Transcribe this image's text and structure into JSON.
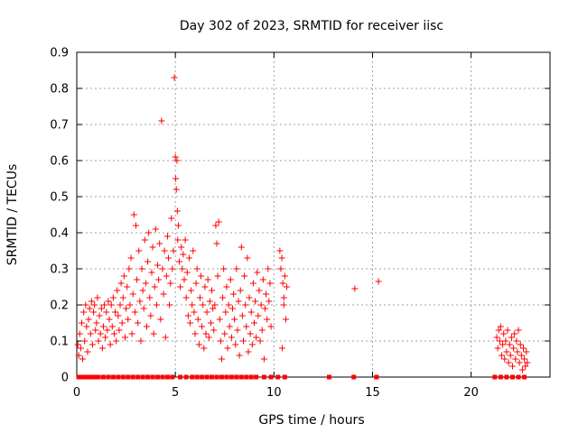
{
  "chart_data": {
    "type": "scatter",
    "title": "Day 302 of 2023, SRMTID for receiver iisc",
    "xlabel": "GPS time / hours",
    "ylabel": "SRMTID / TECUs",
    "xlim": [
      0,
      24
    ],
    "ylim": [
      0,
      0.9
    ],
    "xticks": [
      0,
      5,
      10,
      15,
      20
    ],
    "xtick_labels": [
      "0",
      "5",
      "10",
      "15",
      "20"
    ],
    "yticks": [
      0,
      0.1,
      0.2,
      0.3,
      0.4,
      0.5,
      0.6,
      0.7,
      0.8,
      0.9
    ],
    "ytick_labels": [
      "0",
      "0.1",
      "0.2",
      "0.3",
      "0.4",
      "0.5",
      "0.6",
      "0.7",
      "0.8",
      "0.9"
    ],
    "grid": true,
    "marker": "plus",
    "color": "#ff0000",
    "series": [
      {
        "name": "SRMTID",
        "points": [
          [
            0.05,
            0.09
          ],
          [
            0.1,
            0.06
          ],
          [
            0.15,
            0.12
          ],
          [
            0.2,
            0.08
          ],
          [
            0.25,
            0.15
          ],
          [
            0.3,
            0.05
          ],
          [
            0.35,
            0.18
          ],
          [
            0.4,
            0.1
          ],
          [
            0.45,
            0.2
          ],
          [
            0.5,
            0.14
          ],
          [
            0.55,
            0.07
          ],
          [
            0.6,
            0.16
          ],
          [
            0.65,
            0.19
          ],
          [
            0.7,
            0.12
          ],
          [
            0.75,
            0.21
          ],
          [
            0.8,
            0.09
          ],
          [
            0.85,
            0.18
          ],
          [
            0.9,
            0.2
          ],
          [
            0.95,
            0.13
          ],
          [
            1.0,
            0.15
          ],
          [
            1.05,
            0.22
          ],
          [
            1.1,
            0.1
          ],
          [
            1.15,
            0.17
          ],
          [
            1.2,
            0.12
          ],
          [
            1.25,
            0.19
          ],
          [
            1.3,
            0.08
          ],
          [
            1.35,
            0.14
          ],
          [
            1.4,
            0.2
          ],
          [
            1.45,
            0.11
          ],
          [
            1.5,
            0.18
          ],
          [
            1.55,
            0.13
          ],
          [
            1.6,
            0.21
          ],
          [
            1.65,
            0.16
          ],
          [
            1.7,
            0.09
          ],
          [
            1.75,
            0.2
          ],
          [
            1.8,
            0.14
          ],
          [
            1.85,
            0.22
          ],
          [
            1.9,
            0.12
          ],
          [
            1.95,
            0.18
          ],
          [
            2.0,
            0.1
          ],
          [
            2.05,
            0.24
          ],
          [
            2.1,
            0.17
          ],
          [
            2.15,
            0.13
          ],
          [
            2.2,
            0.2
          ],
          [
            2.25,
            0.26
          ],
          [
            2.3,
            0.15
          ],
          [
            2.35,
            0.22
          ],
          [
            2.4,
            0.28
          ],
          [
            2.45,
            0.11
          ],
          [
            2.5,
            0.19
          ],
          [
            2.55,
            0.25
          ],
          [
            2.6,
            0.16
          ],
          [
            2.65,
            0.3
          ],
          [
            2.7,
            0.2
          ],
          [
            2.75,
            0.33
          ],
          [
            2.8,
            0.12
          ],
          [
            2.85,
            0.23
          ],
          [
            2.9,
            0.45
          ],
          [
            2.95,
            0.18
          ],
          [
            3.0,
            0.42
          ],
          [
            3.05,
            0.27
          ],
          [
            3.1,
            0.15
          ],
          [
            3.15,
            0.35
          ],
          [
            3.2,
            0.21
          ],
          [
            3.25,
            0.1
          ],
          [
            3.3,
            0.3
          ],
          [
            3.35,
            0.24
          ],
          [
            3.4,
            0.19
          ],
          [
            3.45,
            0.38
          ],
          [
            3.5,
            0.26
          ],
          [
            3.55,
            0.14
          ],
          [
            3.6,
            0.32
          ],
          [
            3.65,
            0.4
          ],
          [
            3.7,
            0.22
          ],
          [
            3.75,
            0.17
          ],
          [
            3.8,
            0.29
          ],
          [
            3.85,
            0.36
          ],
          [
            3.9,
            0.12
          ],
          [
            3.95,
            0.25
          ],
          [
            4.0,
            0.41
          ],
          [
            4.05,
            0.2
          ],
          [
            4.1,
            0.31
          ],
          [
            4.15,
            0.27
          ],
          [
            4.2,
            0.37
          ],
          [
            4.25,
            0.16
          ],
          [
            4.3,
            0.71
          ],
          [
            4.35,
            0.3
          ],
          [
            4.4,
            0.23
          ],
          [
            4.45,
            0.35
          ],
          [
            4.5,
            0.11
          ],
          [
            4.55,
            0.28
          ],
          [
            4.6,
            0.39
          ],
          [
            4.65,
            0.33
          ],
          [
            4.7,
            0.2
          ],
          [
            4.75,
            0.26
          ],
          [
            4.8,
            0.44
          ],
          [
            4.85,
            0.3
          ],
          [
            4.9,
            0.35
          ],
          [
            4.95,
            0.83
          ],
          [
            5.0,
            0.61
          ],
          [
            5.02,
            0.55
          ],
          [
            5.05,
            0.52
          ],
          [
            5.08,
            0.6
          ],
          [
            5.1,
            0.46
          ],
          [
            5.12,
            0.38
          ],
          [
            5.15,
            0.42
          ],
          [
            5.2,
            0.32
          ],
          [
            5.25,
            0.25
          ],
          [
            5.3,
            0.36
          ],
          [
            5.35,
            0.3
          ],
          [
            5.4,
            0.34
          ],
          [
            5.45,
            0.27
          ],
          [
            5.5,
            0.38
          ],
          [
            5.55,
            0.22
          ],
          [
            5.6,
            0.29
          ],
          [
            5.65,
            0.17
          ],
          [
            5.7,
            0.33
          ],
          [
            5.75,
            0.15
          ],
          [
            5.8,
            0.24
          ],
          [
            5.85,
            0.2
          ],
          [
            5.9,
            0.35
          ],
          [
            5.95,
            0.18
          ],
          [
            6.0,
            0.12
          ],
          [
            6.05,
            0.26
          ],
          [
            6.1,
            0.3
          ],
          [
            6.15,
            0.16
          ],
          [
            6.2,
            0.09
          ],
          [
            6.25,
            0.22
          ],
          [
            6.3,
            0.28
          ],
          [
            6.35,
            0.14
          ],
          [
            6.4,
            0.2
          ],
          [
            6.45,
            0.08
          ],
          [
            6.5,
            0.25
          ],
          [
            6.55,
            0.12
          ],
          [
            6.6,
            0.18
          ],
          [
            6.65,
            0.27
          ],
          [
            6.7,
            0.11
          ],
          [
            6.75,
            0.21
          ],
          [
            6.8,
            0.15
          ],
          [
            6.85,
            0.24
          ],
          [
            6.9,
            0.19
          ],
          [
            6.95,
            0.13
          ],
          [
            7.0,
            0.2
          ],
          [
            7.05,
            0.42
          ],
          [
            7.1,
            0.37
          ],
          [
            7.15,
            0.28
          ],
          [
            7.2,
            0.43
          ],
          [
            7.25,
            0.16
          ],
          [
            7.3,
            0.1
          ],
          [
            7.35,
            0.05
          ],
          [
            7.4,
            0.22
          ],
          [
            7.45,
            0.3
          ],
          [
            7.5,
            0.12
          ],
          [
            7.55,
            0.18
          ],
          [
            7.6,
            0.25
          ],
          [
            7.65,
            0.08
          ],
          [
            7.7,
            0.2
          ],
          [
            7.75,
            0.14
          ],
          [
            7.8,
            0.27
          ],
          [
            7.85,
            0.11
          ],
          [
            7.9,
            0.19
          ],
          [
            7.95,
            0.23
          ],
          [
            8.0,
            0.16
          ],
          [
            8.05,
            0.09
          ],
          [
            8.1,
            0.3
          ],
          [
            8.15,
            0.13
          ],
          [
            8.2,
            0.21
          ],
          [
            8.25,
            0.06
          ],
          [
            8.3,
            0.24
          ],
          [
            8.35,
            0.36
          ],
          [
            8.4,
            0.17
          ],
          [
            8.45,
            0.1
          ],
          [
            8.5,
            0.28
          ],
          [
            8.55,
            0.2
          ],
          [
            8.6,
            0.14
          ],
          [
            8.65,
            0.33
          ],
          [
            8.7,
            0.07
          ],
          [
            8.75,
            0.22
          ],
          [
            8.8,
            0.12
          ],
          [
            8.85,
            0.18
          ],
          [
            8.9,
            0.09
          ],
          [
            8.95,
            0.26
          ],
          [
            9.0,
            0.15
          ],
          [
            9.05,
            0.21
          ],
          [
            9.1,
            0.11
          ],
          [
            9.15,
            0.29
          ],
          [
            9.2,
            0.17
          ],
          [
            9.25,
            0.24
          ],
          [
            9.3,
            0.1
          ],
          [
            9.35,
            0.2
          ],
          [
            9.4,
            0.13
          ],
          [
            9.45,
            0.27
          ],
          [
            9.5,
            0.05
          ],
          [
            9.55,
            0.19
          ],
          [
            9.6,
            0.23
          ],
          [
            9.65,
            0.16
          ],
          [
            9.7,
            0.3
          ],
          [
            9.75,
            0.21
          ],
          [
            9.8,
            0.26
          ],
          [
            9.85,
            0.14
          ],
          [
            10.3,
            0.35
          ],
          [
            10.35,
            0.3
          ],
          [
            10.4,
            0.33
          ],
          [
            10.45,
            0.26
          ],
          [
            10.5,
            0.2
          ],
          [
            10.55,
            0.28
          ],
          [
            10.6,
            0.16
          ],
          [
            10.65,
            0.25
          ],
          [
            10.42,
            0.08
          ],
          [
            10.5,
            0.22
          ],
          [
            14.1,
            0.245
          ],
          [
            15.3,
            0.265
          ],
          [
            21.3,
            0.11
          ],
          [
            21.35,
            0.08
          ],
          [
            21.4,
            0.13
          ],
          [
            21.45,
            0.1
          ],
          [
            21.5,
            0.14
          ],
          [
            21.55,
            0.06
          ],
          [
            21.6,
            0.09
          ],
          [
            21.65,
            0.12
          ],
          [
            21.7,
            0.05
          ],
          [
            21.75,
            0.1
          ],
          [
            21.8,
            0.07
          ],
          [
            21.85,
            0.13
          ],
          [
            21.9,
            0.04
          ],
          [
            21.95,
            0.09
          ],
          [
            22.0,
            0.06
          ],
          [
            22.05,
            0.11
          ],
          [
            22.1,
            0.03
          ],
          [
            22.15,
            0.08
          ],
          [
            22.2,
            0.12
          ],
          [
            22.25,
            0.05
          ],
          [
            22.3,
            0.1
          ],
          [
            22.35,
            0.07
          ],
          [
            22.4,
            0.13
          ],
          [
            22.45,
            0.04
          ],
          [
            22.5,
            0.09
          ],
          [
            22.55,
            0.06
          ],
          [
            22.6,
            0.02
          ],
          [
            22.65,
            0.08
          ],
          [
            22.7,
            0.05
          ],
          [
            22.75,
            0.03
          ],
          [
            22.8,
            0.07
          ],
          [
            22.85,
            0.04
          ]
        ]
      }
    ],
    "zero_values_x": [
      0.1,
      0.3,
      0.5,
      0.7,
      0.9,
      1.1,
      1.35,
      1.6,
      1.85,
      2.1,
      2.35,
      2.6,
      2.85,
      3.1,
      3.35,
      3.6,
      3.85,
      4.1,
      4.35,
      4.6,
      4.85,
      5.25,
      5.55,
      5.85,
      6.1,
      6.35,
      6.6,
      6.85,
      7.1,
      7.35,
      7.6,
      7.85,
      8.1,
      8.35,
      8.6,
      8.85,
      9.1,
      9.5,
      9.85,
      10.2,
      10.55,
      12.8,
      14.05,
      15.2,
      21.2,
      21.5,
      21.8,
      22.1,
      22.4,
      22.7
    ]
  }
}
